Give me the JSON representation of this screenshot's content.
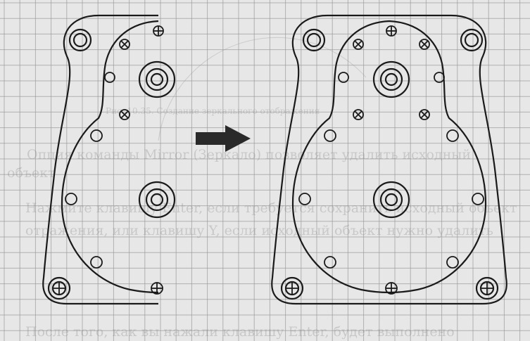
{
  "colors": {
    "paper": "#e7e7e7",
    "grid": "#9a9a9a",
    "ink": "#1a1a1a",
    "arrow": "#2a2a2a",
    "bleed_text": "#7a7a7a"
  },
  "figure": {
    "description_icon": "arrow-right-icon",
    "left_drawing": "half-mirrored-gearbox-cover",
    "right_drawing": "full-mirrored-gearbox-cover"
  },
  "bleed_through_text": {
    "line1": "Опция команды Mirror (Зеркало) позволяет удалить исходный",
    "line2": "объект",
    "line3": "Нажмите клавишу Enter, если требуется сохранить исходный объект",
    "line4": "отражения, или клавишу Y, если исходный объект нужно удалить",
    "line5": "Рис. 10.35. Создание зеркального отображения",
    "line6": "После того, как вы нажали клавишу Enter, будет выполнено"
  }
}
